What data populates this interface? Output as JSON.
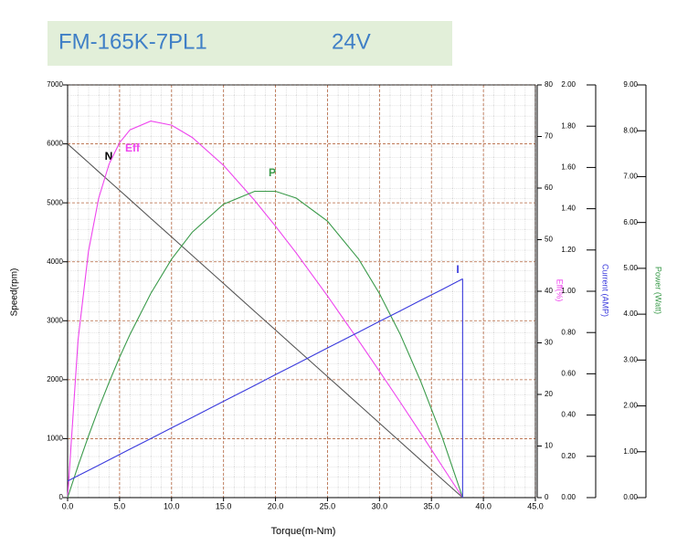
{
  "chart_data": {
    "type": "line",
    "title": "FM-165K-7PL1",
    "subtitle": "24V",
    "xlabel": "Torque(m-Nm)",
    "ylabel": "Speed(rpm)",
    "y2label": "Eff(%)",
    "y3label": "Current (AMP)",
    "y4label": "Power (Watt)",
    "x": [
      0,
      1,
      2,
      3,
      4,
      5,
      6,
      8,
      10,
      12,
      15,
      18,
      20,
      22,
      25,
      28,
      30,
      32,
      34,
      36,
      38
    ],
    "series": [
      {
        "name": "N",
        "color": "#555555",
        "axis": "y",
        "values": [
          6000,
          5842,
          5684,
          5526,
          5368,
          5211,
          5053,
          4737,
          4421,
          4105,
          3632,
          3158,
          2842,
          2526,
          2053,
          1579,
          1263,
          947,
          632,
          316,
          0
        ]
      },
      {
        "name": "Eff",
        "color": "#ee44ee",
        "axis": "y2",
        "values": [
          0,
          30.5,
          47.7,
          58.1,
          64.7,
          68.8,
          71.3,
          73.0,
          72.2,
          69.8,
          64.4,
          57.6,
          52.6,
          47.4,
          39.1,
          30.4,
          24.5,
          18.5,
          12.4,
          6.2,
          0
        ]
      },
      {
        "name": "P",
        "color": "#3a9a4a",
        "axis": "y4",
        "values": [
          0,
          0.69,
          1.34,
          1.95,
          2.52,
          3.06,
          3.56,
          4.45,
          5.2,
          5.79,
          6.4,
          6.68,
          6.68,
          6.53,
          6.03,
          5.2,
          4.45,
          3.56,
          2.52,
          1.34,
          0
        ]
      },
      {
        "name": "I",
        "color": "#3b3bdd",
        "axis": "y3",
        "values": [
          0.08,
          0.106,
          0.132,
          0.157,
          0.183,
          0.209,
          0.235,
          0.286,
          0.338,
          0.389,
          0.467,
          0.544,
          0.596,
          0.647,
          0.725,
          0.802,
          0.854,
          0.905,
          0.957,
          1.008,
          1.06
        ]
      }
    ],
    "xlim": [
      0,
      45
    ],
    "xticks": [
      {
        "value": 0,
        "label": "0.0"
      },
      {
        "value": 5,
        "label": "5.0"
      },
      {
        "value": 10,
        "label": "10.0"
      },
      {
        "value": 15,
        "label": "15.0"
      },
      {
        "value": 20,
        "label": "20.0"
      },
      {
        "value": 25,
        "label": "25.0"
      },
      {
        "value": 30,
        "label": "30.0"
      },
      {
        "value": 35,
        "label": "35.0"
      },
      {
        "value": 40,
        "label": "40.0"
      },
      {
        "value": 45,
        "label": "45.0"
      }
    ],
    "ylim": [
      0,
      7000
    ],
    "yticks": [
      0,
      1000,
      2000,
      3000,
      4000,
      5000,
      6000,
      7000
    ],
    "y2lim": [
      0,
      80
    ],
    "y2ticks": [
      0,
      10,
      20,
      30,
      40,
      50,
      60,
      70,
      80
    ],
    "y3lim": [
      0,
      2
    ],
    "y3ticks": [
      {
        "value": 0,
        "label": "0.00"
      },
      {
        "value": 0.2,
        "label": "0.20"
      },
      {
        "value": 0.4,
        "label": "0.40"
      },
      {
        "value": 0.6,
        "label": "0.60"
      },
      {
        "value": 0.8,
        "label": "0.80"
      },
      {
        "value": 1,
        "label": "1.00"
      },
      {
        "value": 1.2,
        "label": "1.20"
      },
      {
        "value": 1.4,
        "label": "1.40"
      },
      {
        "value": 1.6,
        "label": "1.60"
      },
      {
        "value": 1.8,
        "label": "1.80"
      },
      {
        "value": 2,
        "label": "2.00"
      }
    ],
    "y4lim": [
      0,
      9
    ],
    "y4ticks": [
      {
        "value": 0,
        "label": "0.00"
      },
      {
        "value": 1,
        "label": "1.00"
      },
      {
        "value": 2,
        "label": "2.00"
      },
      {
        "value": 3,
        "label": "3.00"
      },
      {
        "value": 4,
        "label": "4.00"
      },
      {
        "value": 5,
        "label": "5.00"
      },
      {
        "value": 6,
        "label": "6.00"
      },
      {
        "value": 7,
        "label": "7.00"
      },
      {
        "value": 8,
        "label": "8.00"
      },
      {
        "value": 9,
        "label": "9.00"
      }
    ],
    "grid": true
  }
}
